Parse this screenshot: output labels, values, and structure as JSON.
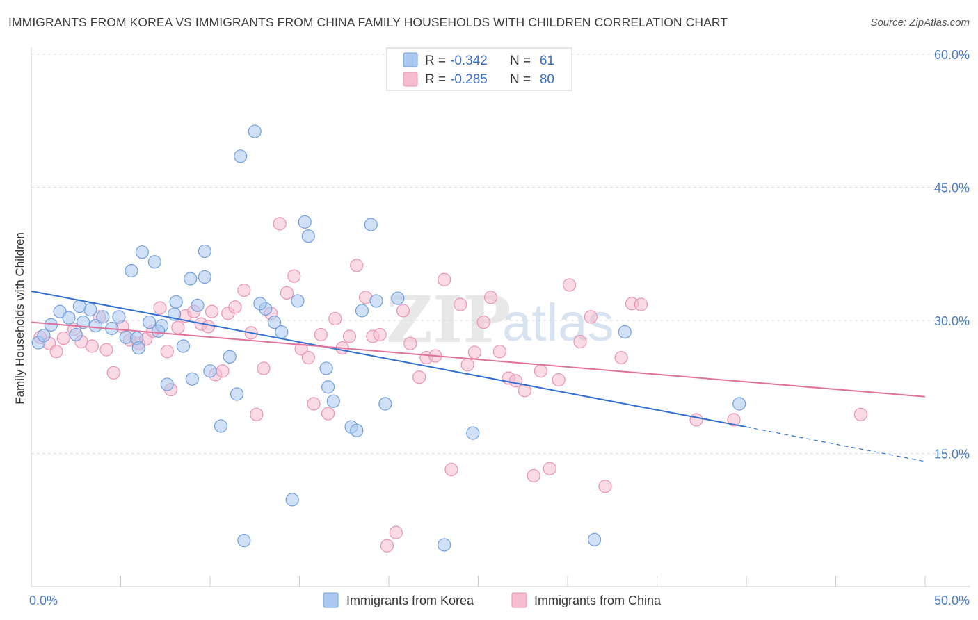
{
  "header": {
    "title": "IMMIGRANTS FROM KOREA VS IMMIGRANTS FROM CHINA FAMILY HOUSEHOLDS WITH CHILDREN CORRELATION CHART",
    "source": "Source: ZipAtlas.com"
  },
  "watermark": {
    "part1": "ZIP",
    "part2": "atlas"
  },
  "legend": {
    "korea": {
      "r_label": "R =",
      "r_value": "-0.342",
      "n_label": "N =",
      "n_value": "61"
    },
    "china": {
      "r_label": "R =",
      "r_value": "-0.285",
      "n_label": "N =",
      "n_value": "80"
    }
  },
  "colors": {
    "korea_fill": "#aac8f0",
    "korea_stroke": "#6f9fdc",
    "korea_line": "#2f6fd0",
    "china_fill": "#f6bcd0",
    "china_stroke": "#e993b2",
    "china_line": "#e0729a"
  },
  "chart_data": {
    "type": "scatter",
    "title": "IMMIGRANTS FROM KOREA VS IMMIGRANTS FROM CHINA FAMILY HOUSEHOLDS WITH CHILDREN CORRELATION CHART",
    "xlabel": "",
    "ylabel": "Family Households with Children",
    "xlim": [
      0,
      50
    ],
    "ylim": [
      0,
      60
    ],
    "x_ticks": [
      0,
      50
    ],
    "x_tick_labels": [
      "0.0%",
      "50.0%"
    ],
    "y_ticks": [
      15,
      30,
      45,
      60
    ],
    "y_tick_labels": [
      "15.0%",
      "30.0%",
      "45.0%",
      "60.0%"
    ],
    "grid": true,
    "legend_position": "top-center",
    "series": [
      {
        "name": "Immigrants from Korea",
        "r": -0.342,
        "n": 61,
        "trend": {
          "x0": 0,
          "y0": 33.3,
          "x1": 40.0,
          "y1": 18.0,
          "dash_to_x": 50,
          "dash_to_y": 14.1
        },
        "points": [
          [
            0.4,
            27.5
          ],
          [
            0.7,
            28.3
          ],
          [
            1.1,
            29.5
          ],
          [
            1.6,
            31.0
          ],
          [
            2.1,
            30.3
          ],
          [
            2.5,
            28.4
          ],
          [
            3.3,
            31.2
          ],
          [
            2.9,
            29.8
          ],
          [
            3.6,
            29.4
          ],
          [
            4.0,
            30.4
          ],
          [
            4.5,
            29.1
          ],
          [
            4.9,
            30.4
          ],
          [
            5.3,
            28.1
          ],
          [
            5.6,
            35.6
          ],
          [
            5.9,
            28.0
          ],
          [
            6.0,
            26.9
          ],
          [
            6.2,
            37.7
          ],
          [
            6.6,
            29.8
          ],
          [
            6.9,
            36.6
          ],
          [
            7.3,
            29.4
          ],
          [
            7.6,
            22.8
          ],
          [
            8.0,
            30.7
          ],
          [
            8.1,
            32.1
          ],
          [
            8.5,
            27.1
          ],
          [
            8.9,
            34.7
          ],
          [
            9.0,
            23.4
          ],
          [
            9.3,
            31.7
          ],
          [
            9.7,
            37.8
          ],
          [
            9.7,
            34.9
          ],
          [
            10.0,
            24.3
          ],
          [
            10.6,
            18.1
          ],
          [
            11.1,
            25.9
          ],
          [
            11.5,
            21.7
          ],
          [
            11.7,
            48.5
          ],
          [
            11.9,
            5.2
          ],
          [
            12.5,
            51.3
          ],
          [
            13.1,
            31.3
          ],
          [
            13.6,
            29.8
          ],
          [
            14.0,
            28.7
          ],
          [
            14.6,
            9.8
          ],
          [
            14.9,
            32.2
          ],
          [
            15.3,
            41.1
          ],
          [
            15.5,
            39.5
          ],
          [
            16.5,
            24.6
          ],
          [
            16.6,
            22.5
          ],
          [
            16.9,
            20.9
          ],
          [
            17.9,
            18.0
          ],
          [
            18.2,
            17.6
          ],
          [
            18.5,
            31.1
          ],
          [
            19.0,
            40.8
          ],
          [
            19.3,
            32.2
          ],
          [
            19.8,
            20.6
          ],
          [
            20.5,
            32.5
          ],
          [
            23.1,
            4.7
          ],
          [
            24.7,
            17.3
          ],
          [
            31.5,
            5.3
          ],
          [
            33.2,
            28.7
          ],
          [
            39.6,
            20.6
          ],
          [
            2.7,
            31.6
          ],
          [
            7.1,
            28.8
          ],
          [
            12.8,
            31.9
          ]
        ]
      },
      {
        "name": "Immigrants from China",
        "r": -0.285,
        "n": 80,
        "trend": {
          "x0": 0,
          "y0": 29.8,
          "x1": 50,
          "y1": 21.4
        },
        "points": [
          [
            0.5,
            28.1
          ],
          [
            1.0,
            27.4
          ],
          [
            1.4,
            26.5
          ],
          [
            1.8,
            28.0
          ],
          [
            2.4,
            29.0
          ],
          [
            2.8,
            27.6
          ],
          [
            3.4,
            27.1
          ],
          [
            3.8,
            30.4
          ],
          [
            4.2,
            26.7
          ],
          [
            4.6,
            24.1
          ],
          [
            5.1,
            29.3
          ],
          [
            5.5,
            27.8
          ],
          [
            6.0,
            27.4
          ],
          [
            6.4,
            27.9
          ],
          [
            6.8,
            28.8
          ],
          [
            7.2,
            31.4
          ],
          [
            7.6,
            26.5
          ],
          [
            7.8,
            22.2
          ],
          [
            8.2,
            29.2
          ],
          [
            8.6,
            30.5
          ],
          [
            9.1,
            31.0
          ],
          [
            9.5,
            29.6
          ],
          [
            9.9,
            29.3
          ],
          [
            10.3,
            23.9
          ],
          [
            10.7,
            24.3
          ],
          [
            11.0,
            30.8
          ],
          [
            11.4,
            31.5
          ],
          [
            11.9,
            33.4
          ],
          [
            12.3,
            28.6
          ],
          [
            12.6,
            19.4
          ],
          [
            13.0,
            24.6
          ],
          [
            13.4,
            30.8
          ],
          [
            13.9,
            40.9
          ],
          [
            14.3,
            33.1
          ],
          [
            14.7,
            35.0
          ],
          [
            15.1,
            26.8
          ],
          [
            15.5,
            25.8
          ],
          [
            15.8,
            20.6
          ],
          [
            16.2,
            28.4
          ],
          [
            16.6,
            19.5
          ],
          [
            17.0,
            30.2
          ],
          [
            17.4,
            26.9
          ],
          [
            17.8,
            28.2
          ],
          [
            18.2,
            36.2
          ],
          [
            18.7,
            32.6
          ],
          [
            19.1,
            28.2
          ],
          [
            19.5,
            28.4
          ],
          [
            19.9,
            4.6
          ],
          [
            20.4,
            6.1
          ],
          [
            20.8,
            31.1
          ],
          [
            21.2,
            27.4
          ],
          [
            21.7,
            23.6
          ],
          [
            22.1,
            25.8
          ],
          [
            22.6,
            26.0
          ],
          [
            23.1,
            34.6
          ],
          [
            23.5,
            13.2
          ],
          [
            24.0,
            31.8
          ],
          [
            24.4,
            25.0
          ],
          [
            24.8,
            26.4
          ],
          [
            25.3,
            29.8
          ],
          [
            25.7,
            32.6
          ],
          [
            26.2,
            26.5
          ],
          [
            26.7,
            23.5
          ],
          [
            27.1,
            23.2
          ],
          [
            27.6,
            22.1
          ],
          [
            28.1,
            12.5
          ],
          [
            28.5,
            24.3
          ],
          [
            29.0,
            13.3
          ],
          [
            29.5,
            23.3
          ],
          [
            30.1,
            34.0
          ],
          [
            30.7,
            27.6
          ],
          [
            31.3,
            30.4
          ],
          [
            32.1,
            11.3
          ],
          [
            33.0,
            25.8
          ],
          [
            33.6,
            31.9
          ],
          [
            34.1,
            31.8
          ],
          [
            37.2,
            18.8
          ],
          [
            39.3,
            18.8
          ],
          [
            46.4,
            19.4
          ],
          [
            10.1,
            31.0
          ]
        ]
      }
    ]
  },
  "bottom_legend": {
    "korea_label": "Immigrants from Korea",
    "china_label": "Immigrants from China"
  }
}
